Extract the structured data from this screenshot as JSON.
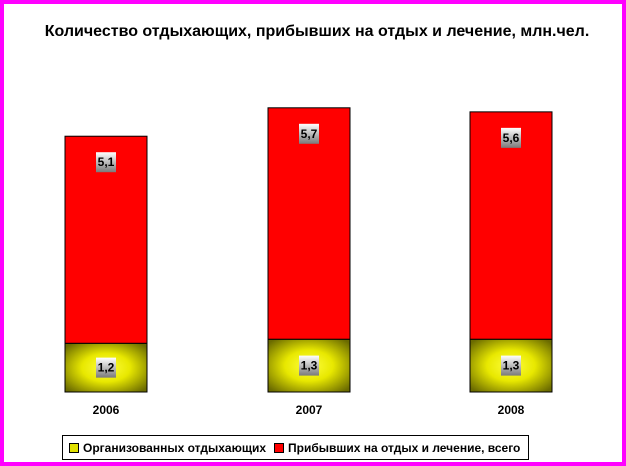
{
  "chart_data": {
    "type": "bar",
    "stacked": true,
    "title": "Количество отдыхающих, прибывших на отдых и лечение, млн.чел.",
    "categories": [
      "2006",
      "2007",
      "2008"
    ],
    "series": [
      {
        "name": "Организованных отдыхающих",
        "values": [
          1.2,
          1.3,
          1.3
        ],
        "labels": [
          "1,2",
          "1,3",
          "1,3"
        ],
        "color": "#e0e000"
      },
      {
        "name": "Прибывших на отдых и лечение, всего",
        "values": [
          5.1,
          5.7,
          5.6
        ],
        "labels": [
          "5,1",
          "5,7",
          "5,6"
        ],
        "color": "#ff0000"
      }
    ],
    "grid": false,
    "legend_position": "bottom"
  },
  "colors": {
    "frame": "#ff00ff",
    "organized": "#e0e000",
    "total": "#ff0000"
  }
}
